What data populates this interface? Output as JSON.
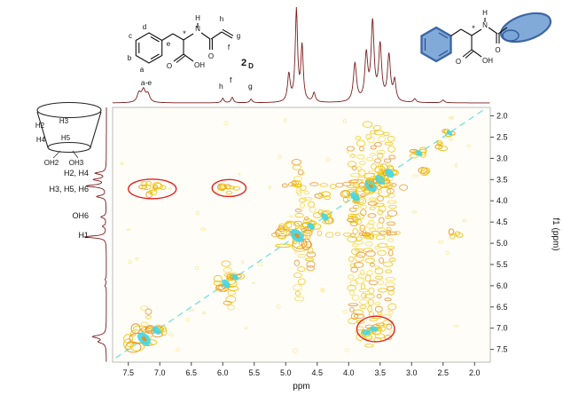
{
  "figure": {
    "xlabel": "ppm",
    "ylabel": "f1 (ppm)"
  },
  "top_peak_labels": {
    "aromatic": "a-e",
    "h": "h",
    "f": "f",
    "g": "g"
  },
  "left_row_labels": {
    "r1": "H2, H4",
    "r2": "H3, H5, H6",
    "r3": "OH6",
    "r4": "H1"
  },
  "cd_cartoon": {
    "h2": "H2",
    "h3": "H3",
    "h4": "H4",
    "h5": "H5",
    "oh2": "OH2",
    "oh3": "OH3"
  },
  "mol1": {
    "a": "a",
    "b": "b",
    "c": "c",
    "d": "d",
    "e": "e",
    "f": "f",
    "g": "g",
    "h": "h",
    "n": "N",
    "nh": "H",
    "o_acid": "O",
    "oh": "OH",
    "o_amide": "O",
    "star": "*",
    "compound_num": "2",
    "compound_sub": "D"
  },
  "mol2": {
    "n": "N",
    "nh": "H",
    "o_acid": "O",
    "oh": "OH",
    "o_amide": "O",
    "star": "*"
  },
  "chart_data": {
    "type": "heatmap",
    "x_axis": {
      "label": "ppm",
      "min": 1.75,
      "max": 7.75,
      "ticks": [
        7.5,
        7.0,
        6.5,
        6.0,
        5.5,
        5.0,
        4.5,
        4.0,
        3.5,
        3.0,
        2.5,
        2.0
      ]
    },
    "y_axis": {
      "label": "f1 (ppm)",
      "min": 1.8,
      "max": 7.8,
      "ticks": [
        2.0,
        2.5,
        3.0,
        3.5,
        4.0,
        4.5,
        5.0,
        5.5,
        6.0,
        6.5,
        7.0,
        7.5
      ]
    },
    "top_trace_peaks": [
      [
        7.33,
        0.1,
        0.035
      ],
      [
        7.26,
        0.13,
        0.035
      ],
      [
        7.19,
        0.09,
        0.035
      ],
      [
        6.0,
        0.05,
        0.022
      ],
      [
        5.85,
        0.06,
        0.022
      ],
      [
        5.55,
        0.04,
        0.022
      ],
      [
        4.95,
        0.3,
        0.025
      ],
      [
        4.83,
        1.0,
        0.022
      ],
      [
        4.74,
        0.6,
        0.022
      ],
      [
        4.55,
        0.1,
        0.025
      ],
      [
        3.9,
        0.42,
        0.03
      ],
      [
        3.72,
        0.5,
        0.028
      ],
      [
        3.62,
        0.85,
        0.028
      ],
      [
        3.5,
        0.6,
        0.028
      ],
      [
        3.36,
        0.5,
        0.028
      ],
      [
        3.27,
        0.22,
        0.025
      ],
      [
        2.95,
        0.04,
        0.025
      ],
      [
        2.5,
        0.03,
        0.025
      ]
    ],
    "left_trace_peaks": [
      [
        7.32,
        0.3,
        0.04
      ],
      [
        7.2,
        0.55,
        0.04
      ],
      [
        6.0,
        0.06,
        0.03
      ],
      [
        5.85,
        0.05,
        0.03
      ],
      [
        4.85,
        0.9,
        0.028
      ],
      [
        4.6,
        0.15,
        0.03
      ],
      [
        4.38,
        0.22,
        0.03
      ],
      [
        3.9,
        0.4,
        0.03
      ],
      [
        3.65,
        0.8,
        0.032
      ],
      [
        3.5,
        0.5,
        0.03
      ],
      [
        3.35,
        0.45,
        0.03
      ]
    ],
    "diagonal": {
      "from": 7.7,
      "to": 1.85
    },
    "diagonal_clusters": [
      [
        7.25,
        1.5
      ],
      [
        7.05,
        0.8
      ],
      [
        5.95,
        0.8
      ],
      [
        5.8,
        0.5
      ],
      [
        4.82,
        1.5
      ],
      [
        4.6,
        0.6
      ],
      [
        4.38,
        0.7
      ],
      [
        3.9,
        0.9
      ],
      [
        3.65,
        1.3
      ],
      [
        3.5,
        1.0
      ],
      [
        3.35,
        0.9
      ],
      [
        2.88,
        0.5
      ],
      [
        2.4,
        0.35
      ]
    ],
    "noise_streaks": [
      [
        3.35,
        2.4,
        7.3
      ],
      [
        3.5,
        2.3,
        7.35
      ],
      [
        3.65,
        2.2,
        7.4
      ],
      [
        3.8,
        2.5,
        7.2
      ],
      [
        3.92,
        2.8,
        6.9
      ],
      [
        4.78,
        3.1,
        6.4
      ],
      [
        4.62,
        3.8,
        5.6
      ],
      [
        7.2,
        6.5,
        7.5
      ],
      [
        5.9,
        5.5,
        6.5
      ]
    ],
    "noise_rows": [
      [
        4.8,
        3.2,
        5.3
      ],
      [
        3.65,
        3.1,
        5.1
      ]
    ],
    "cross_peaks": [
      [
        7.2,
        3.65
      ],
      [
        7.1,
        3.78
      ],
      [
        7.0,
        3.7
      ],
      [
        5.95,
        3.65
      ],
      [
        5.85,
        3.74
      ],
      [
        3.6,
        7.05
      ],
      [
        3.5,
        6.95
      ],
      [
        3.68,
        7.15
      ],
      [
        2.75,
        3.3
      ],
      [
        2.5,
        2.7
      ],
      [
        2.3,
        4.8
      ],
      [
        4.4,
        3.9
      ],
      [
        3.9,
        4.42
      ],
      [
        4.8,
        3.65
      ],
      [
        3.65,
        4.8
      ],
      [
        5.0,
        4.62
      ]
    ],
    "cyan_cross_peaks": [
      [
        3.6,
        7.02
      ],
      [
        3.72,
        7.1
      ]
    ],
    "highlight_ellipses": [
      [
        7.12,
        3.72,
        0.38,
        0.23
      ],
      [
        5.9,
        3.7,
        0.27,
        0.2
      ],
      [
        3.57,
        7.02,
        0.3,
        0.3
      ]
    ],
    "colors": {
      "contour_yellow": "#eec20c",
      "contour_light": "#f7d94e",
      "contour_orange": "#ea8c1f",
      "diagonal_cyan": "#3fd8e8",
      "trace": "#7b1d1d",
      "highlight_red": "#e02424",
      "axis": "#8a8a8a"
    }
  }
}
